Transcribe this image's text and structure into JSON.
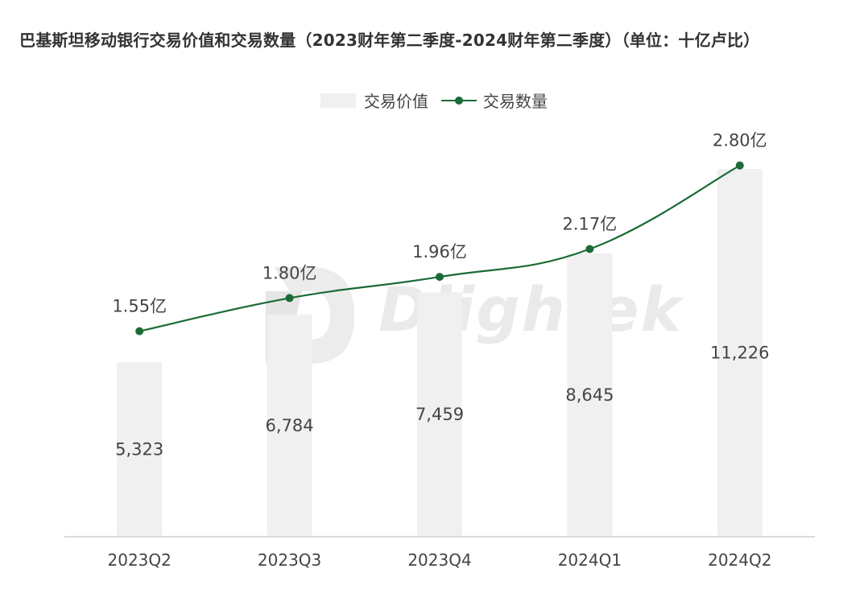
{
  "title": "巴基斯坦移动银行交易价值和交易数量（2023财年第二季度-2024财年第二季度）（单位：十亿卢比）",
  "legend": {
    "bar_label": "交易价值",
    "line_label": "交易数量"
  },
  "watermark": "Dlightek",
  "colors": {
    "bar": "#f0f0f0",
    "line": "#1a6b35",
    "axis": "#cfcfcf",
    "text": "#444444"
  },
  "chart_data": {
    "type": "bar",
    "title": "巴基斯坦移动银行交易价值和交易数量（2023财年第二季度-2024财年第二季度）（单位：十亿卢比）",
    "categories": [
      "2023Q2",
      "2023Q3",
      "2023Q4",
      "2024Q1",
      "2024Q2"
    ],
    "series": [
      {
        "name": "交易价值",
        "type": "bar",
        "values": [
          5323,
          6784,
          7459,
          8645,
          11226
        ],
        "labels": [
          "5,323",
          "6,784",
          "7,459",
          "8,645",
          "11,226"
        ]
      },
      {
        "name": "交易数量",
        "type": "line",
        "values": [
          1.55,
          1.8,
          1.96,
          2.17,
          2.8
        ],
        "labels": [
          "1.55亿",
          "1.80亿",
          "1.96亿",
          "2.17亿",
          "2.80亿"
        ]
      }
    ],
    "bar_axis_range": [
      0,
      11300
    ],
    "line_axis_range": [
      0,
      3.32
    ],
    "xlabel": "",
    "ylabel": "",
    "grid": false,
    "legend_position": "top-center"
  }
}
